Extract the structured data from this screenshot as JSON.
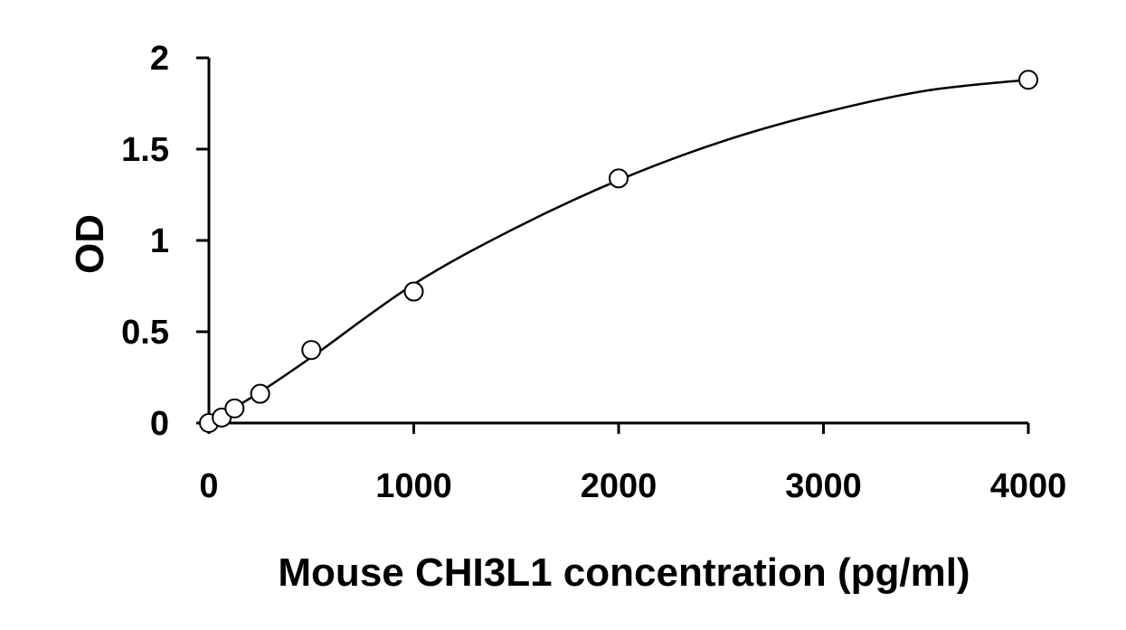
{
  "chart_data": {
    "type": "scatter",
    "title": "",
    "xlabel": "Mouse CHI3L1 concentration (pg/ml)",
    "ylabel": "OD",
    "xlim": [
      0,
      4000
    ],
    "ylim": [
      0,
      2
    ],
    "xticks": [
      0,
      1000,
      2000,
      3000,
      4000
    ],
    "yticks": [
      0,
      0.5,
      1,
      1.5,
      2
    ],
    "xtick_labels": [
      "0",
      "1000",
      "2000",
      "3000",
      "4000"
    ],
    "ytick_labels": [
      "0",
      "0.5",
      "1",
      "1.5",
      "2"
    ],
    "grid": false,
    "legend": "none",
    "marker": "open-circle",
    "fit": "smooth-curve",
    "colors": {
      "axis": "#000000",
      "marker_edge": "#000000",
      "marker_fill": "#ffffff",
      "curve": "#000000"
    },
    "series": [
      {
        "x": [
          0,
          62.5,
          125,
          250,
          500,
          1000,
          2000,
          4000
        ],
        "y": [
          0.0,
          0.03,
          0.08,
          0.16,
          0.4,
          0.72,
          1.34,
          1.88
        ]
      }
    ],
    "fit_curve": {
      "x": [
        0,
        250,
        500,
        1000,
        1500,
        2000,
        2500,
        3000,
        3500,
        4000
      ],
      "y": [
        0.0,
        0.17,
        0.36,
        0.76,
        1.07,
        1.33,
        1.54,
        1.7,
        1.82,
        1.88
      ]
    }
  }
}
